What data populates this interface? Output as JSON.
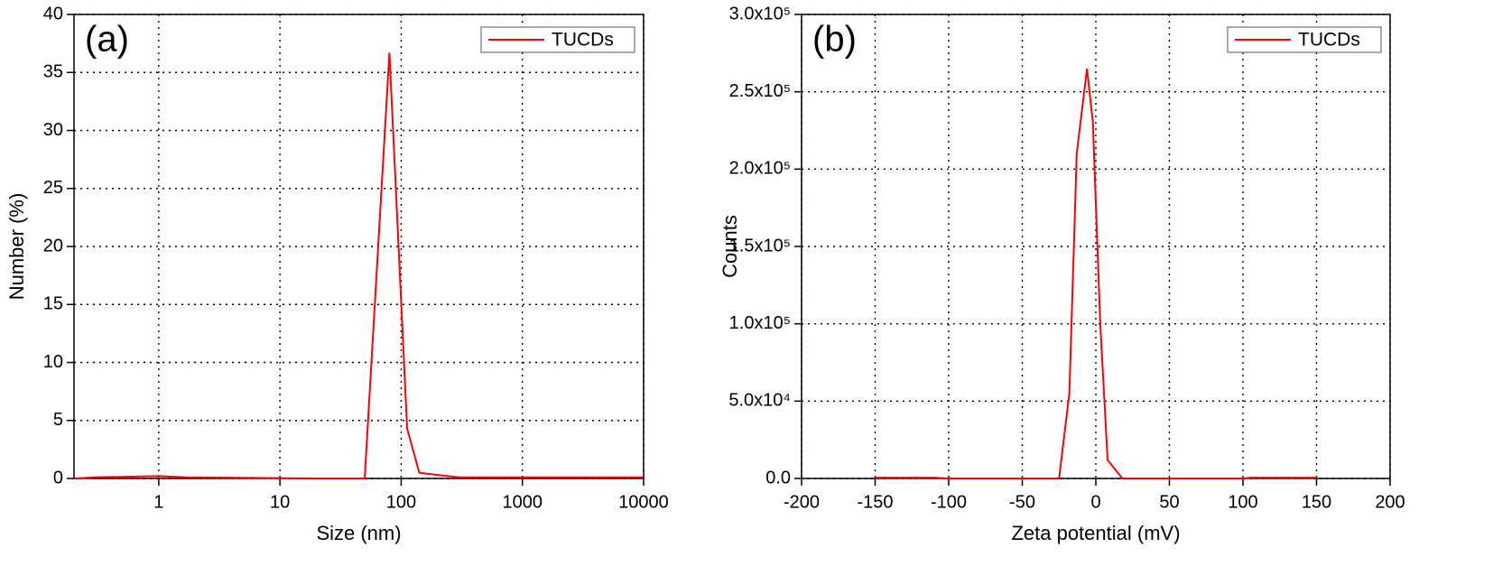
{
  "chart_data": [
    {
      "type": "line",
      "panel_label": "(a)",
      "x_label": "Size (nm)",
      "y_label": "Number (%)",
      "x_scale": "log",
      "xlim": [
        0.2,
        10000
      ],
      "xticks": [
        1,
        10,
        100,
        1000,
        10000
      ],
      "ylim": [
        0,
        40
      ],
      "yticks": [
        0,
        5,
        10,
        15,
        20,
        25,
        30,
        35,
        40
      ],
      "grid": true,
      "legend": "upper right",
      "x": [
        0.2,
        0.3,
        1,
        1.7,
        20,
        50,
        80,
        112,
        141,
        200,
        300,
        10000
      ],
      "series": [
        {
          "name": "TUCDs",
          "color": "#ff0000",
          "values": [
            0,
            0.1,
            0.2,
            0.1,
            0,
            0,
            36.7,
            4.3,
            0.5,
            0.3,
            0.1,
            0.1
          ]
        }
      ]
    },
    {
      "type": "line",
      "panel_label": "(b)",
      "x_label": "Zeta potential (mV)",
      "y_label": "Counts",
      "xlim": [
        -200,
        200
      ],
      "xticks": [
        -200,
        -150,
        -100,
        -50,
        0,
        50,
        100,
        150,
        200
      ],
      "ylim": [
        0,
        300000
      ],
      "yticks": [
        {
          "value": 0,
          "label": "0.0"
        },
        {
          "value": 50000,
          "label": "5.0x10⁴"
        },
        {
          "value": 100000,
          "label": "1.0x10⁵"
        },
        {
          "value": 150000,
          "label": "1.5x10⁵"
        },
        {
          "value": 200000,
          "label": "2.0x10⁵"
        },
        {
          "value": 250000,
          "label": "2.5x10⁵"
        },
        {
          "value": 300000,
          "label": "3.0x10⁵"
        }
      ],
      "grid": true,
      "legend": "upper right",
      "x": [
        -150,
        -110,
        -100,
        -25,
        -18,
        -13,
        -6,
        -2,
        3,
        8,
        18,
        100,
        105,
        150
      ],
      "series": [
        {
          "name": "TUCDs",
          "color": "#ff0000",
          "values": [
            500,
            500,
            0,
            0,
            55000,
            210000,
            265000,
            230000,
            100000,
            12000,
            0,
            0,
            500,
            500
          ]
        }
      ]
    }
  ]
}
